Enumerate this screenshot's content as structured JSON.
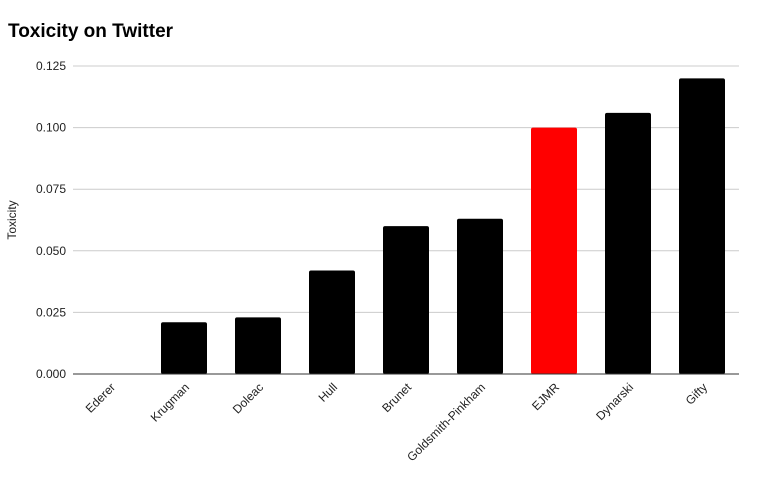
{
  "chart_data": {
    "type": "bar",
    "title": "Toxicity on Twitter",
    "xlabel": "",
    "ylabel": "Toxicity",
    "ylim": [
      0,
      0.125
    ],
    "yticks": [
      "0.000",
      "0.025",
      "0.050",
      "0.075",
      "0.100",
      "0.125"
    ],
    "grid": true,
    "categories": [
      "Ederer",
      "Krugman",
      "Doleac",
      "Hull",
      "Brunet",
      "Goldsmith-Pinkham",
      "EJMR",
      "Dynarski",
      "Gifty"
    ],
    "values": [
      0.0,
      0.021,
      0.023,
      0.042,
      0.06,
      0.063,
      0.1,
      0.106,
      0.12
    ],
    "colors": [
      "#000000",
      "#000000",
      "#000000",
      "#000000",
      "#000000",
      "#000000",
      "#ff0000",
      "#000000",
      "#000000"
    ]
  }
}
